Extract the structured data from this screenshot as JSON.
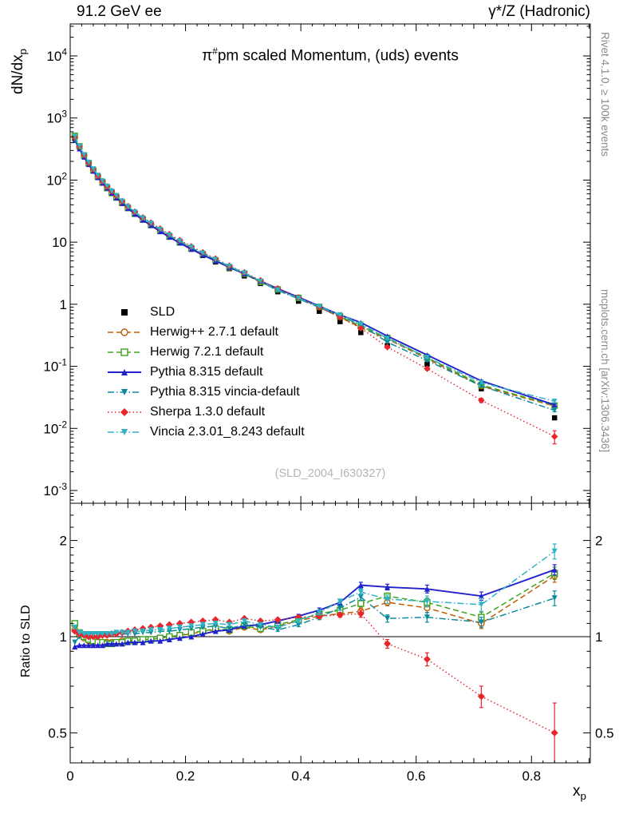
{
  "header": {
    "left": "91.2 GeV ee",
    "right": "γ*/Z (Hadronic)"
  },
  "plot": {
    "title": {
      "prefix": "π",
      "sup": "#",
      "rest": "pm scaled Momentum, (uds) events"
    },
    "watermark": "(SLD_2004_I630327)"
  },
  "sidebar_right": {
    "top": "Rivet 4.1.0, ≥ 100k events",
    "bottom": "mcplots.cern.ch [arXiv:1306.3436]"
  },
  "axes": {
    "main_y_label": {
      "text": "dN/dx",
      "sub": "p"
    },
    "ratio_y_label": "Ratio to SLD",
    "x_label": {
      "text": "x",
      "sub": "p"
    },
    "x_ticks": [
      {
        "v": 0,
        "label": "0"
      },
      {
        "v": 0.2,
        "label": "0.2"
      },
      {
        "v": 0.4,
        "label": "0.4"
      },
      {
        "v": 0.6,
        "label": "0.6"
      },
      {
        "v": 0.8,
        "label": "0.8"
      }
    ],
    "main_y_ticks": [
      {
        "v": 10000,
        "base": "10",
        "exp": "4"
      },
      {
        "v": 1000,
        "base": "10",
        "exp": "3"
      },
      {
        "v": 100,
        "base": "10",
        "exp": "2"
      },
      {
        "v": 10,
        "base": "10",
        "exp": ""
      },
      {
        "v": 1,
        "base": "1",
        "exp": ""
      },
      {
        "v": 0.1,
        "base": "10",
        "exp": "-1"
      },
      {
        "v": 0.01,
        "base": "10",
        "exp": "-2"
      },
      {
        "v": 0.001,
        "base": "10",
        "exp": "-3"
      }
    ],
    "ratio_y_ticks": [
      {
        "v": 2,
        "label": "2"
      },
      {
        "v": 1,
        "label": "1"
      },
      {
        "v": 0.5,
        "label": "0.5"
      }
    ]
  },
  "chart_data": {
    "type": "line",
    "title": "π#pm scaled Momentum, (uds) events",
    "xlabel": "x_p",
    "ylabel": "dN/dx_p",
    "ratio_ylabel": "Ratio to SLD",
    "x_axis": {
      "lim": [
        0,
        0.902
      ],
      "scale": "linear"
    },
    "main_y_axis": {
      "scale": "log",
      "lim_log10": [
        -3.2,
        4.51
      ]
    },
    "ratio_y_axis": {
      "scale": "log",
      "ticks": [
        0.5,
        1,
        2
      ],
      "lim": [
        0.403,
        2.61
      ]
    },
    "x": [
      0.008,
      0.016,
      0.024,
      0.032,
      0.04,
      0.048,
      0.056,
      0.064,
      0.072,
      0.08,
      0.09,
      0.1,
      0.112,
      0.126,
      0.14,
      0.156,
      0.172,
      0.19,
      0.21,
      0.23,
      0.252,
      0.276,
      0.302,
      0.33,
      0.36,
      0.396,
      0.432,
      0.468,
      0.504,
      0.55,
      0.619,
      0.713,
      0.84
    ],
    "reference": {
      "name": "SLD",
      "marker": "square",
      "color": "#000000",
      "values": [
        470,
        340,
        250,
        190,
        148,
        117,
        95,
        78,
        65,
        54.5,
        44.5,
        36.5,
        29.5,
        23.6,
        19.2,
        15.3,
        12.3,
        9.8,
        7.7,
        6.1,
        4.8,
        3.75,
        2.86,
        2.16,
        1.59,
        1.12,
        0.77,
        0.525,
        0.35,
        0.215,
        0.108,
        0.0435,
        0.0148
      ]
    },
    "series": [
      {
        "name": "Herwig++ 2.7.1 default",
        "color": "#bf5b00",
        "marker": "circle-open",
        "line": "dash",
        "ratio": [
          1.05,
          1.01,
          0.99,
          0.97,
          0.96,
          0.96,
          0.96,
          0.96,
          0.96,
          0.96,
          0.97,
          0.97,
          0.97,
          0.98,
          0.98,
          0.99,
          1.0,
          1.01,
          1.02,
          1.04,
          1.05,
          1.04,
          1.07,
          1.05,
          1.08,
          1.12,
          1.16,
          1.18,
          1.2,
          1.28,
          1.23,
          1.1,
          1.55
        ],
        "ratio_err": [
          0,
          0,
          0,
          0,
          0,
          0,
          0,
          0,
          0,
          0,
          0,
          0,
          0,
          0,
          0,
          0,
          0,
          0,
          0,
          0,
          0,
          0,
          0,
          0,
          0.01,
          0.015,
          0.02,
          0.02,
          0.03,
          0.03,
          0.04,
          0.04,
          0.07
        ]
      },
      {
        "name": "Herwig 7.2.1 default",
        "color": "#3ea31c",
        "marker": "square-open",
        "line": "dash",
        "ratio": [
          1.1,
          1.03,
          1.0,
          0.98,
          0.97,
          0.96,
          0.96,
          0.95,
          0.95,
          0.96,
          0.96,
          0.97,
          0.97,
          0.98,
          0.98,
          0.99,
          1.0,
          1.01,
          1.03,
          1.04,
          1.06,
          1.05,
          1.08,
          1.06,
          1.09,
          1.13,
          1.18,
          1.21,
          1.27,
          1.34,
          1.28,
          1.15,
          1.58
        ],
        "ratio_err": [
          0,
          0,
          0,
          0,
          0,
          0,
          0,
          0,
          0,
          0,
          0,
          0,
          0,
          0,
          0,
          0,
          0,
          0,
          0,
          0,
          0,
          0,
          0,
          0,
          0.01,
          0.015,
          0.02,
          0.02,
          0.03,
          0.03,
          0.04,
          0.04,
          0.07
        ]
      },
      {
        "name": "Pythia 8.315 default",
        "color": "#2222cc",
        "marker": "triangle-up",
        "line": "solid",
        "ratio": [
          0.93,
          0.94,
          0.94,
          0.94,
          0.94,
          0.94,
          0.94,
          0.95,
          0.95,
          0.95,
          0.95,
          0.96,
          0.96,
          0.96,
          0.97,
          0.97,
          0.98,
          0.99,
          1.0,
          1.02,
          1.04,
          1.05,
          1.08,
          1.09,
          1.12,
          1.16,
          1.21,
          1.28,
          1.45,
          1.43,
          1.41,
          1.34,
          1.62
        ],
        "ratio_err": [
          0,
          0,
          0,
          0,
          0,
          0,
          0,
          0,
          0,
          0,
          0,
          0,
          0,
          0,
          0,
          0,
          0,
          0,
          0,
          0,
          0,
          0,
          0,
          0,
          0.01,
          0.015,
          0.02,
          0.02,
          0.03,
          0.03,
          0.04,
          0.04,
          0.06
        ]
      },
      {
        "name": "Pythia 8.315 vincia-default",
        "color": "#0b8a9e",
        "marker": "triangle-down",
        "line": "dashdot",
        "ratio": [
          0.96,
          1.0,
          1.01,
          1.01,
          1.01,
          1.01,
          1.01,
          1.01,
          1.02,
          1.02,
          1.02,
          1.02,
          1.02,
          1.03,
          1.03,
          1.04,
          1.04,
          1.05,
          1.06,
          1.07,
          1.08,
          1.06,
          1.09,
          1.07,
          1.05,
          1.09,
          1.15,
          1.23,
          1.33,
          1.14,
          1.15,
          1.11,
          1.32
        ],
        "ratio_err": [
          0,
          0,
          0,
          0,
          0,
          0,
          0,
          0,
          0,
          0,
          0,
          0,
          0,
          0,
          0,
          0,
          0,
          0,
          0,
          0,
          0,
          0,
          0,
          0,
          0.01,
          0.015,
          0.02,
          0.02,
          0.03,
          0.03,
          0.04,
          0.04,
          0.07
        ]
      },
      {
        "name": "Sherpa 1.3.0 default",
        "color": "#e8262e",
        "marker": "diamond",
        "line": "dot",
        "ratio": [
          1.04,
          1.02,
          1.01,
          1.0,
          1.0,
          1.0,
          1.01,
          1.01,
          1.02,
          1.02,
          1.03,
          1.04,
          1.05,
          1.06,
          1.07,
          1.08,
          1.09,
          1.1,
          1.11,
          1.12,
          1.13,
          1.11,
          1.14,
          1.12,
          1.13,
          1.15,
          1.16,
          1.17,
          1.18,
          0.95,
          0.85,
          0.65,
          0.5
        ],
        "ratio_err": [
          0,
          0,
          0,
          0,
          0,
          0,
          0,
          0,
          0,
          0,
          0,
          0,
          0,
          0,
          0,
          0,
          0,
          0,
          0,
          0,
          0,
          0,
          0,
          0,
          0.01,
          0.015,
          0.02,
          0.02,
          0.03,
          0.03,
          0.04,
          0.05,
          0.12
        ]
      },
      {
        "name": "Vincia 2.3.01_8.243 default",
        "color": "#2fb3c4",
        "marker": "triangle-down",
        "line": "dashdot",
        "ratio": [
          1.07,
          1.03,
          1.02,
          1.02,
          1.02,
          1.02,
          1.02,
          1.02,
          1.02,
          1.03,
          1.03,
          1.03,
          1.04,
          1.04,
          1.05,
          1.05,
          1.06,
          1.07,
          1.08,
          1.09,
          1.1,
          1.09,
          1.12,
          1.09,
          1.07,
          1.12,
          1.19,
          1.29,
          1.38,
          1.31,
          1.29,
          1.26,
          1.85
        ],
        "ratio_err": [
          0,
          0,
          0,
          0,
          0,
          0,
          0,
          0,
          0,
          0,
          0,
          0,
          0,
          0,
          0,
          0,
          0,
          0,
          0,
          0,
          0,
          0,
          0,
          0,
          0.01,
          0.015,
          0.02,
          0.02,
          0.03,
          0.04,
          0.05,
          0.06,
          0.1
        ]
      }
    ],
    "legend_position": "inside-left-middle",
    "grid": false
  }
}
